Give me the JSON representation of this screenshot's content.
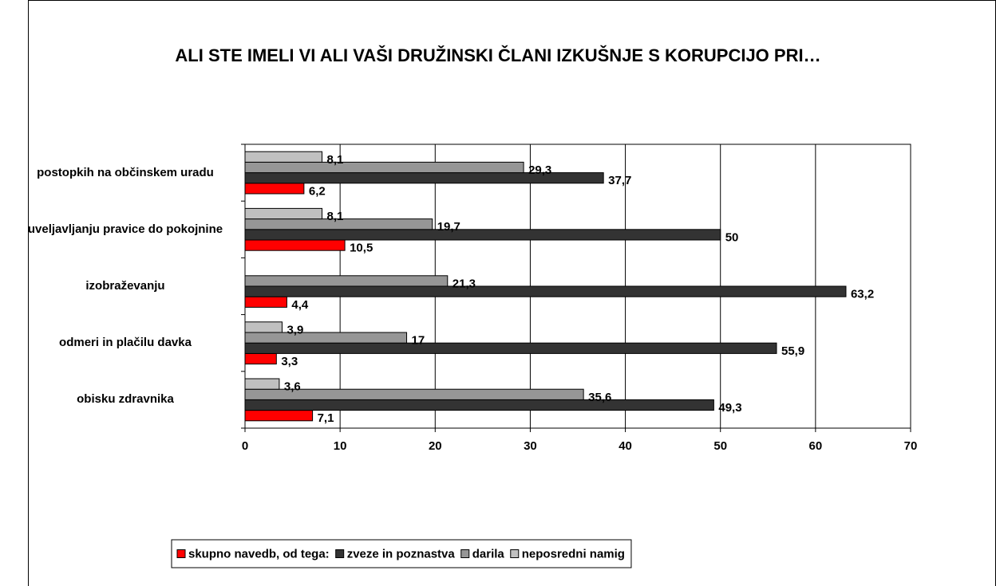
{
  "chart_data": {
    "type": "hbar",
    "title": "ALI STE IMELI VI ALI VAŠI DRUŽINSKI ČLANI IZKUŠNJE S KORUPCIJO PRI…",
    "categories": [
      "postopkih na občinskem uradu",
      "uveljavljanju pravice do pokojnine",
      "izobraževanju",
      "odmeri in plačilu davka",
      "obisku zdravnika"
    ],
    "series": [
      {
        "name": "skupno navedb, od tega:",
        "color": "#ff0000",
        "values": [
          6.2,
          10.5,
          4.4,
          3.3,
          7.1
        ],
        "value_labels": [
          "6,2",
          "10,5",
          "4,4",
          "3,3",
          "7,1"
        ]
      },
      {
        "name": "zveze in poznastva",
        "color": "#333333",
        "values": [
          37.7,
          50,
          63.2,
          55.9,
          49.3
        ],
        "value_labels": [
          "37,7",
          "50",
          "63,2",
          "55,9",
          "49,3"
        ]
      },
      {
        "name": "darila",
        "color": "#969696",
        "values": [
          29.3,
          19.7,
          21.3,
          17,
          35.6
        ],
        "value_labels": [
          "29,3",
          "19,7",
          "21,3",
          "17",
          "35,6"
        ]
      },
      {
        "name": "neposredni namig",
        "color": "#c0c0c0",
        "values": [
          8.1,
          8.1,
          null,
          3.9,
          3.6
        ],
        "value_labels": [
          "8,1",
          "8,1",
          null,
          "3,9",
          "3,6"
        ]
      }
    ],
    "xlim": [
      0,
      70
    ],
    "xticks": [
      0,
      10,
      20,
      30,
      40,
      50,
      60,
      70
    ],
    "grid": true,
    "legend": "bottom"
  }
}
